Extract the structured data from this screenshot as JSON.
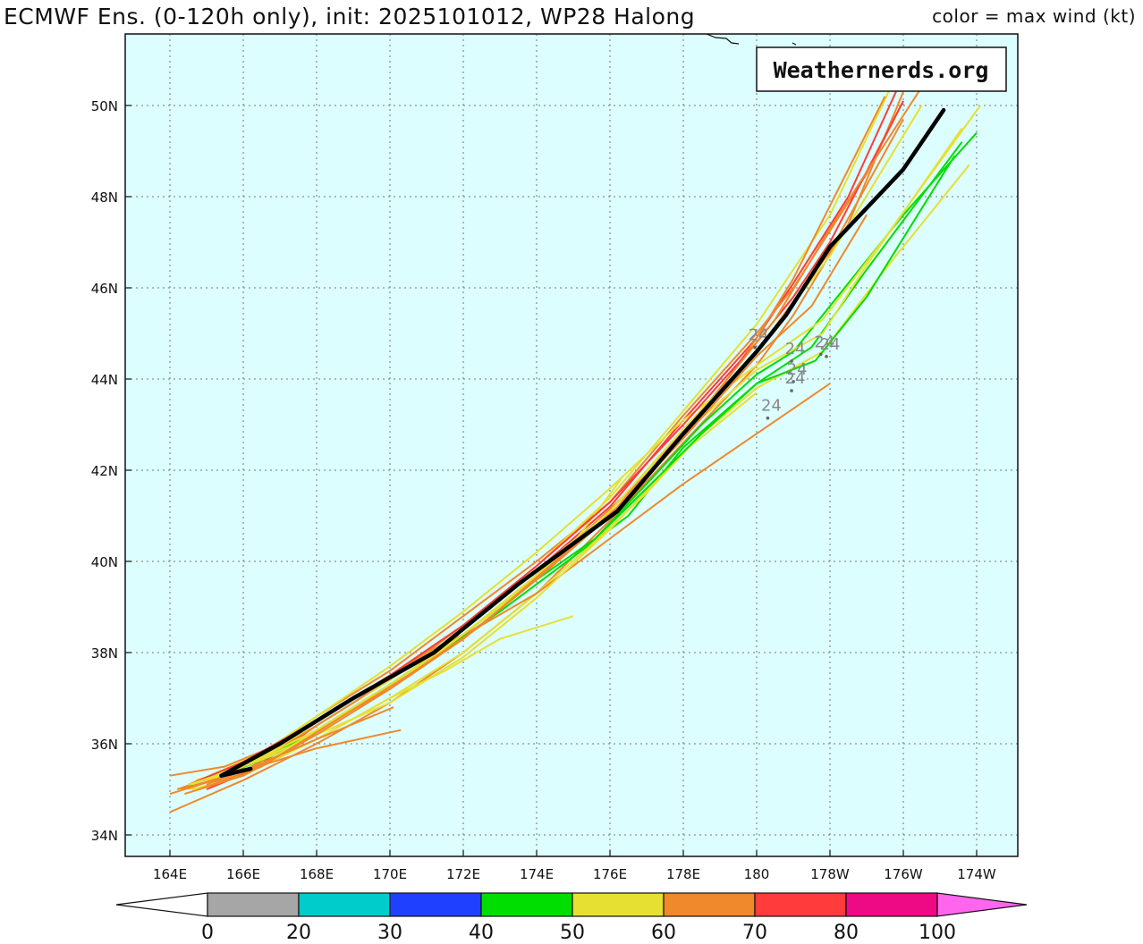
{
  "title": {
    "left": "ECMWF Ens. (0-120h only), init: 2025101012, WP28 Halong",
    "right": "color = max wind (kt)"
  },
  "brand": "Weathernerds.org",
  "map": {
    "background": "#dcfefe",
    "lon_ticks": [
      {
        "lon": 164,
        "label": "164E"
      },
      {
        "lon": 166,
        "label": "166E"
      },
      {
        "lon": 168,
        "label": "168E"
      },
      {
        "lon": 170,
        "label": "170E"
      },
      {
        "lon": 172,
        "label": "172E"
      },
      {
        "lon": 174,
        "label": "174E"
      },
      {
        "lon": 176,
        "label": "176E"
      },
      {
        "lon": 178,
        "label": "178E"
      },
      {
        "lon": 180,
        "label": "180"
      },
      {
        "lon": 182,
        "label": "178W"
      },
      {
        "lon": 184,
        "label": "176W"
      },
      {
        "lon": 186,
        "label": "174W"
      }
    ],
    "lat_ticks": [
      {
        "lat": 34,
        "label": "34N"
      },
      {
        "lat": 36,
        "label": "36N"
      },
      {
        "lat": 38,
        "label": "38N"
      },
      {
        "lat": 40,
        "label": "40N"
      },
      {
        "lat": 42,
        "label": "42N"
      },
      {
        "lat": 44,
        "label": "44N"
      },
      {
        "lat": 46,
        "label": "46N"
      },
      {
        "lat": 48,
        "label": "48N"
      },
      {
        "lat": 50,
        "label": "50N"
      }
    ]
  },
  "colorbar": {
    "bins": [
      {
        "color": "#a6a6a6"
      },
      {
        "color": "#00cccc"
      },
      {
        "color": "#2040ff"
      },
      {
        "color": "#00dd00"
      },
      {
        "color": "#e6e033"
      },
      {
        "color": "#f0882c"
      },
      {
        "color": "#ff3b3b"
      },
      {
        "color": "#ee0a85"
      }
    ],
    "under_color": "#ffffff",
    "over_color": "#ff66ee",
    "labels": [
      "0",
      "20",
      "30",
      "40",
      "50",
      "60",
      "70",
      "80",
      "100"
    ]
  },
  "hour_labels": [
    {
      "text": "24",
      "lon": 180.05,
      "lat": 44.85
    },
    {
      "text": "24",
      "lon": 181.85,
      "lat": 44.7
    },
    {
      "text": "24",
      "lon": 182.0,
      "lat": 44.65
    },
    {
      "text": "24",
      "lon": 181.05,
      "lat": 44.55
    },
    {
      "text": "24",
      "lon": 181.1,
      "lat": 44.1
    },
    {
      "text": "24",
      "lon": 181.05,
      "lat": 43.9
    },
    {
      "text": "24",
      "lon": 180.4,
      "lat": 43.3
    }
  ],
  "tracks": [
    {
      "color": "#f0882c",
      "points": [
        [
          165.0,
          35.1
        ],
        [
          166.0,
          35.4
        ],
        [
          168.0,
          36.3
        ],
        [
          170.0,
          37.2
        ],
        [
          172.0,
          38.3
        ],
        [
          174.0,
          39.6
        ],
        [
          176.0,
          41.0
        ],
        [
          178.0,
          42.9
        ],
        [
          180.0,
          44.6
        ],
        [
          182.0,
          46.8
        ],
        [
          184.0,
          49.7
        ]
      ]
    },
    {
      "color": "#ff3b3b",
      "points": [
        [
          165.0,
          35.0
        ],
        [
          166.2,
          35.4
        ],
        [
          168.0,
          36.4
        ],
        [
          170.0,
          37.4
        ],
        [
          172.0,
          38.5
        ],
        [
          174.0,
          39.8
        ],
        [
          176.0,
          41.2
        ],
        [
          178.0,
          43.1
        ],
        [
          180.0,
          44.9
        ],
        [
          181.0,
          46.1
        ],
        [
          182.5,
          48.0
        ],
        [
          183.8,
          50.3
        ]
      ]
    },
    {
      "color": "#f0882c",
      "points": [
        [
          164.2,
          35.0
        ],
        [
          166.0,
          35.5
        ],
        [
          168.0,
          36.6
        ],
        [
          170.0,
          37.6
        ],
        [
          172.0,
          38.8
        ],
        [
          174.0,
          40.0
        ],
        [
          176.0,
          41.3
        ],
        [
          178.0,
          43.2
        ],
        [
          180.0,
          45.0
        ],
        [
          181.0,
          46.0
        ],
        [
          183.0,
          48.5
        ],
        [
          184.0,
          50.1
        ]
      ]
    },
    {
      "color": "#e6e033",
      "points": [
        [
          164.6,
          35.1
        ],
        [
          166.0,
          35.6
        ],
        [
          168.0,
          36.5
        ],
        [
          170.0,
          37.5
        ],
        [
          172.0,
          38.6
        ],
        [
          174.0,
          39.9
        ],
        [
          176.0,
          41.4
        ],
        [
          178.0,
          43.3
        ],
        [
          180.0,
          45.2
        ],
        [
          182.0,
          47.6
        ],
        [
          183.6,
          50.3
        ]
      ]
    },
    {
      "color": "#f0882c",
      "points": [
        [
          164.0,
          34.5
        ],
        [
          166.0,
          35.2
        ],
        [
          168.0,
          36.0
        ],
        [
          170.0,
          36.9
        ],
        [
          172.0,
          38.0
        ],
        [
          174.0,
          39.3
        ],
        [
          176.0,
          40.9
        ],
        [
          178.0,
          42.6
        ],
        [
          180.0,
          44.3
        ],
        [
          181.0,
          45.4
        ],
        [
          182.5,
          47.4
        ],
        [
          184.0,
          50.3
        ]
      ]
    },
    {
      "color": "#00dd00",
      "points": [
        [
          165.2,
          35.2
        ],
        [
          166.6,
          35.7
        ],
        [
          168.0,
          36.3
        ],
        [
          170.0,
          37.3
        ],
        [
          172.0,
          38.4
        ],
        [
          174.0,
          39.6
        ],
        [
          175.6,
          40.5
        ],
        [
          177.0,
          41.7
        ],
        [
          178.5,
          43.0
        ],
        [
          180.0,
          44.1
        ],
        [
          181.0,
          44.6
        ],
        [
          182.0,
          45.6
        ],
        [
          184.0,
          47.6
        ],
        [
          186.0,
          49.4
        ]
      ]
    },
    {
      "color": "#00dd00",
      "points": [
        [
          165.4,
          35.3
        ],
        [
          167.0,
          35.8
        ],
        [
          169.0,
          36.8
        ],
        [
          171.0,
          37.8
        ],
        [
          173.0,
          38.9
        ],
        [
          175.0,
          40.1
        ],
        [
          176.5,
          41.0
        ],
        [
          178.0,
          42.5
        ],
        [
          180.0,
          43.9
        ],
        [
          181.5,
          44.7
        ],
        [
          183.0,
          46.4
        ],
        [
          185.6,
          49.2
        ]
      ]
    },
    {
      "color": "#e6e033",
      "points": [
        [
          164.5,
          35.0
        ],
        [
          166.0,
          35.5
        ],
        [
          168.0,
          36.4
        ],
        [
          170.0,
          37.4
        ],
        [
          172.0,
          38.5
        ],
        [
          174.0,
          39.8
        ],
        [
          176.0,
          41.1
        ],
        [
          178.0,
          42.8
        ],
        [
          180.0,
          44.2
        ],
        [
          181.8,
          45.0
        ],
        [
          183.0,
          46.5
        ],
        [
          185.6,
          49.5
        ]
      ]
    },
    {
      "color": "#e6e033",
      "points": [
        [
          164.8,
          35.2
        ],
        [
          166.5,
          35.8
        ],
        [
          168.0,
          36.6
        ],
        [
          170.0,
          37.7
        ],
        [
          172.0,
          38.9
        ],
        [
          174.0,
          40.2
        ],
        [
          176.0,
          41.6
        ],
        [
          178.0,
          43.1
        ],
        [
          180.0,
          44.3
        ],
        [
          181.8,
          45.3
        ],
        [
          183.5,
          47.1
        ],
        [
          186.1,
          50.0
        ]
      ]
    },
    {
      "color": "#f0882c",
      "points": [
        [
          164.0,
          35.3
        ],
        [
          165.5,
          35.5
        ],
        [
          167.0,
          36.0
        ],
        [
          169.0,
          37.0
        ],
        [
          171.0,
          38.0
        ],
        [
          173.0,
          39.2
        ],
        [
          175.0,
          40.4
        ],
        [
          177.0,
          41.9
        ],
        [
          178.5,
          43.2
        ],
        [
          180.0,
          44.9
        ],
        [
          181.0,
          46.2
        ],
        [
          183.5,
          50.2
        ]
      ]
    },
    {
      "color": "#e6e033",
      "points": [
        [
          164.6,
          35.0
        ],
        [
          166.0,
          35.3
        ],
        [
          168.0,
          36.1
        ],
        [
          170.0,
          37.0
        ],
        [
          172.0,
          38.0
        ],
        [
          174.0,
          39.3
        ],
        [
          175.4,
          40.3
        ],
        [
          177.0,
          41.5
        ],
        [
          178.5,
          42.8
        ],
        [
          180.0,
          43.8
        ],
        [
          181.8,
          44.6
        ],
        [
          183.4,
          46.3
        ],
        [
          185.8,
          48.7
        ]
      ]
    },
    {
      "color": "#e6e033",
      "points": [
        [
          165.0,
          35.2
        ],
        [
          167.0,
          35.8
        ],
        [
          169.0,
          36.8
        ],
        [
          171.0,
          37.8
        ],
        [
          173.0,
          39.0
        ],
        [
          175.0,
          40.4
        ],
        [
          176.3,
          41.8
        ]
      ]
    },
    {
      "color": "#e6e033",
      "points": [
        [
          166.0,
          35.4
        ],
        [
          168.0,
          36.1
        ],
        [
          170.0,
          37.0
        ],
        [
          171.5,
          37.6
        ],
        [
          173.0,
          38.3
        ],
        [
          175.0,
          38.8
        ]
      ]
    },
    {
      "color": "#f0882c",
      "points": [
        [
          164.3,
          35.0
        ],
        [
          166.0,
          35.4
        ],
        [
          168.0,
          35.9
        ],
        [
          170.3,
          36.3
        ]
      ]
    },
    {
      "color": "#f0882c",
      "points": [
        [
          164.0,
          34.9
        ],
        [
          166.0,
          35.4
        ],
        [
          168.0,
          36.1
        ],
        [
          170.1,
          36.8
        ]
      ]
    },
    {
      "color": "#f0882c",
      "points": [
        [
          165.0,
          35.1
        ],
        [
          167.0,
          35.9
        ],
        [
          169.0,
          36.9
        ],
        [
          171.0,
          38.0
        ],
        [
          172.5,
          38.6
        ],
        [
          174.0,
          39.3
        ],
        [
          176.0,
          40.5
        ],
        [
          178.0,
          41.7
        ],
        [
          180.0,
          42.8
        ],
        [
          182.0,
          43.9
        ]
      ]
    },
    {
      "color": "#e6e033",
      "points": [
        [
          164.7,
          35.2
        ],
        [
          166.0,
          35.5
        ],
        [
          168.0,
          36.2
        ],
        [
          170.0,
          36.9
        ],
        [
          172.0,
          37.9
        ],
        [
          174.0,
          39.2
        ],
        [
          176.0,
          40.7
        ],
        [
          178.0,
          42.4
        ],
        [
          180.0,
          43.7
        ]
      ]
    },
    {
      "color": "#ff3b3b",
      "points": [
        [
          164.5,
          35.1
        ],
        [
          166.0,
          35.6
        ],
        [
          168.0,
          36.5
        ],
        [
          170.0,
          37.5
        ],
        [
          172.0,
          38.6
        ],
        [
          174.0,
          39.9
        ],
        [
          176.0,
          41.3
        ],
        [
          178.0,
          43.0
        ],
        [
          180.0,
          44.8
        ],
        [
          181.0,
          45.8
        ],
        [
          182.0,
          47.0
        ],
        [
          184.0,
          50.1
        ]
      ]
    },
    {
      "color": "#00dd00",
      "points": [
        [
          175.6,
          40.5
        ],
        [
          177.0,
          41.6
        ],
        [
          178.5,
          42.8
        ],
        [
          180.0,
          43.9
        ],
        [
          181.6,
          44.4
        ],
        [
          183.0,
          45.8
        ],
        [
          185.4,
          48.9
        ]
      ]
    },
    {
      "color": "#f0882c",
      "points": [
        [
          164.8,
          35.0
        ],
        [
          166.5,
          35.5
        ],
        [
          168.5,
          36.5
        ],
        [
          170.5,
          37.5
        ],
        [
          172.5,
          38.6
        ],
        [
          174.5,
          40.0
        ],
        [
          176.5,
          41.4
        ],
        [
          178.5,
          43.3
        ],
        [
          180.5,
          45.3
        ],
        [
          182.0,
          47.3
        ],
        [
          184.5,
          50.4
        ]
      ]
    },
    {
      "color": "#e6e033",
      "points": [
        [
          164.5,
          35.1
        ],
        [
          166.0,
          35.5
        ],
        [
          168.0,
          36.3
        ],
        [
          170.0,
          37.3
        ],
        [
          172.0,
          38.4
        ],
        [
          174.0,
          39.7
        ],
        [
          176.0,
          41.1
        ],
        [
          178.0,
          42.9
        ],
        [
          180.0,
          44.6
        ],
        [
          182.0,
          46.7
        ],
        [
          184.5,
          50.0
        ]
      ]
    },
    {
      "color": "#f0882c",
      "points": [
        [
          164.4,
          34.9
        ],
        [
          166.0,
          35.3
        ],
        [
          168.0,
          36.2
        ],
        [
          170.0,
          37.2
        ],
        [
          172.0,
          38.3
        ],
        [
          174.0,
          39.6
        ],
        [
          176.0,
          41.0
        ],
        [
          178.0,
          42.7
        ],
        [
          180.0,
          44.5
        ],
        [
          181.5,
          45.6
        ],
        [
          183.0,
          47.6
        ]
      ]
    }
  ],
  "mean_track": {
    "color": "#000000",
    "points": [
      [
        166.2,
        35.45
      ],
      [
        165.4,
        35.3
      ],
      [
        167.0,
        36.0
      ],
      [
        169.0,
        37.0
      ],
      [
        171.2,
        38.0
      ],
      [
        173.5,
        39.5
      ],
      [
        176.2,
        41.1
      ],
      [
        178.0,
        42.8
      ],
      [
        180.0,
        44.6
      ],
      [
        180.8,
        45.4
      ],
      [
        182.0,
        46.9
      ],
      [
        184.0,
        48.6
      ],
      [
        185.1,
        49.9
      ]
    ]
  }
}
